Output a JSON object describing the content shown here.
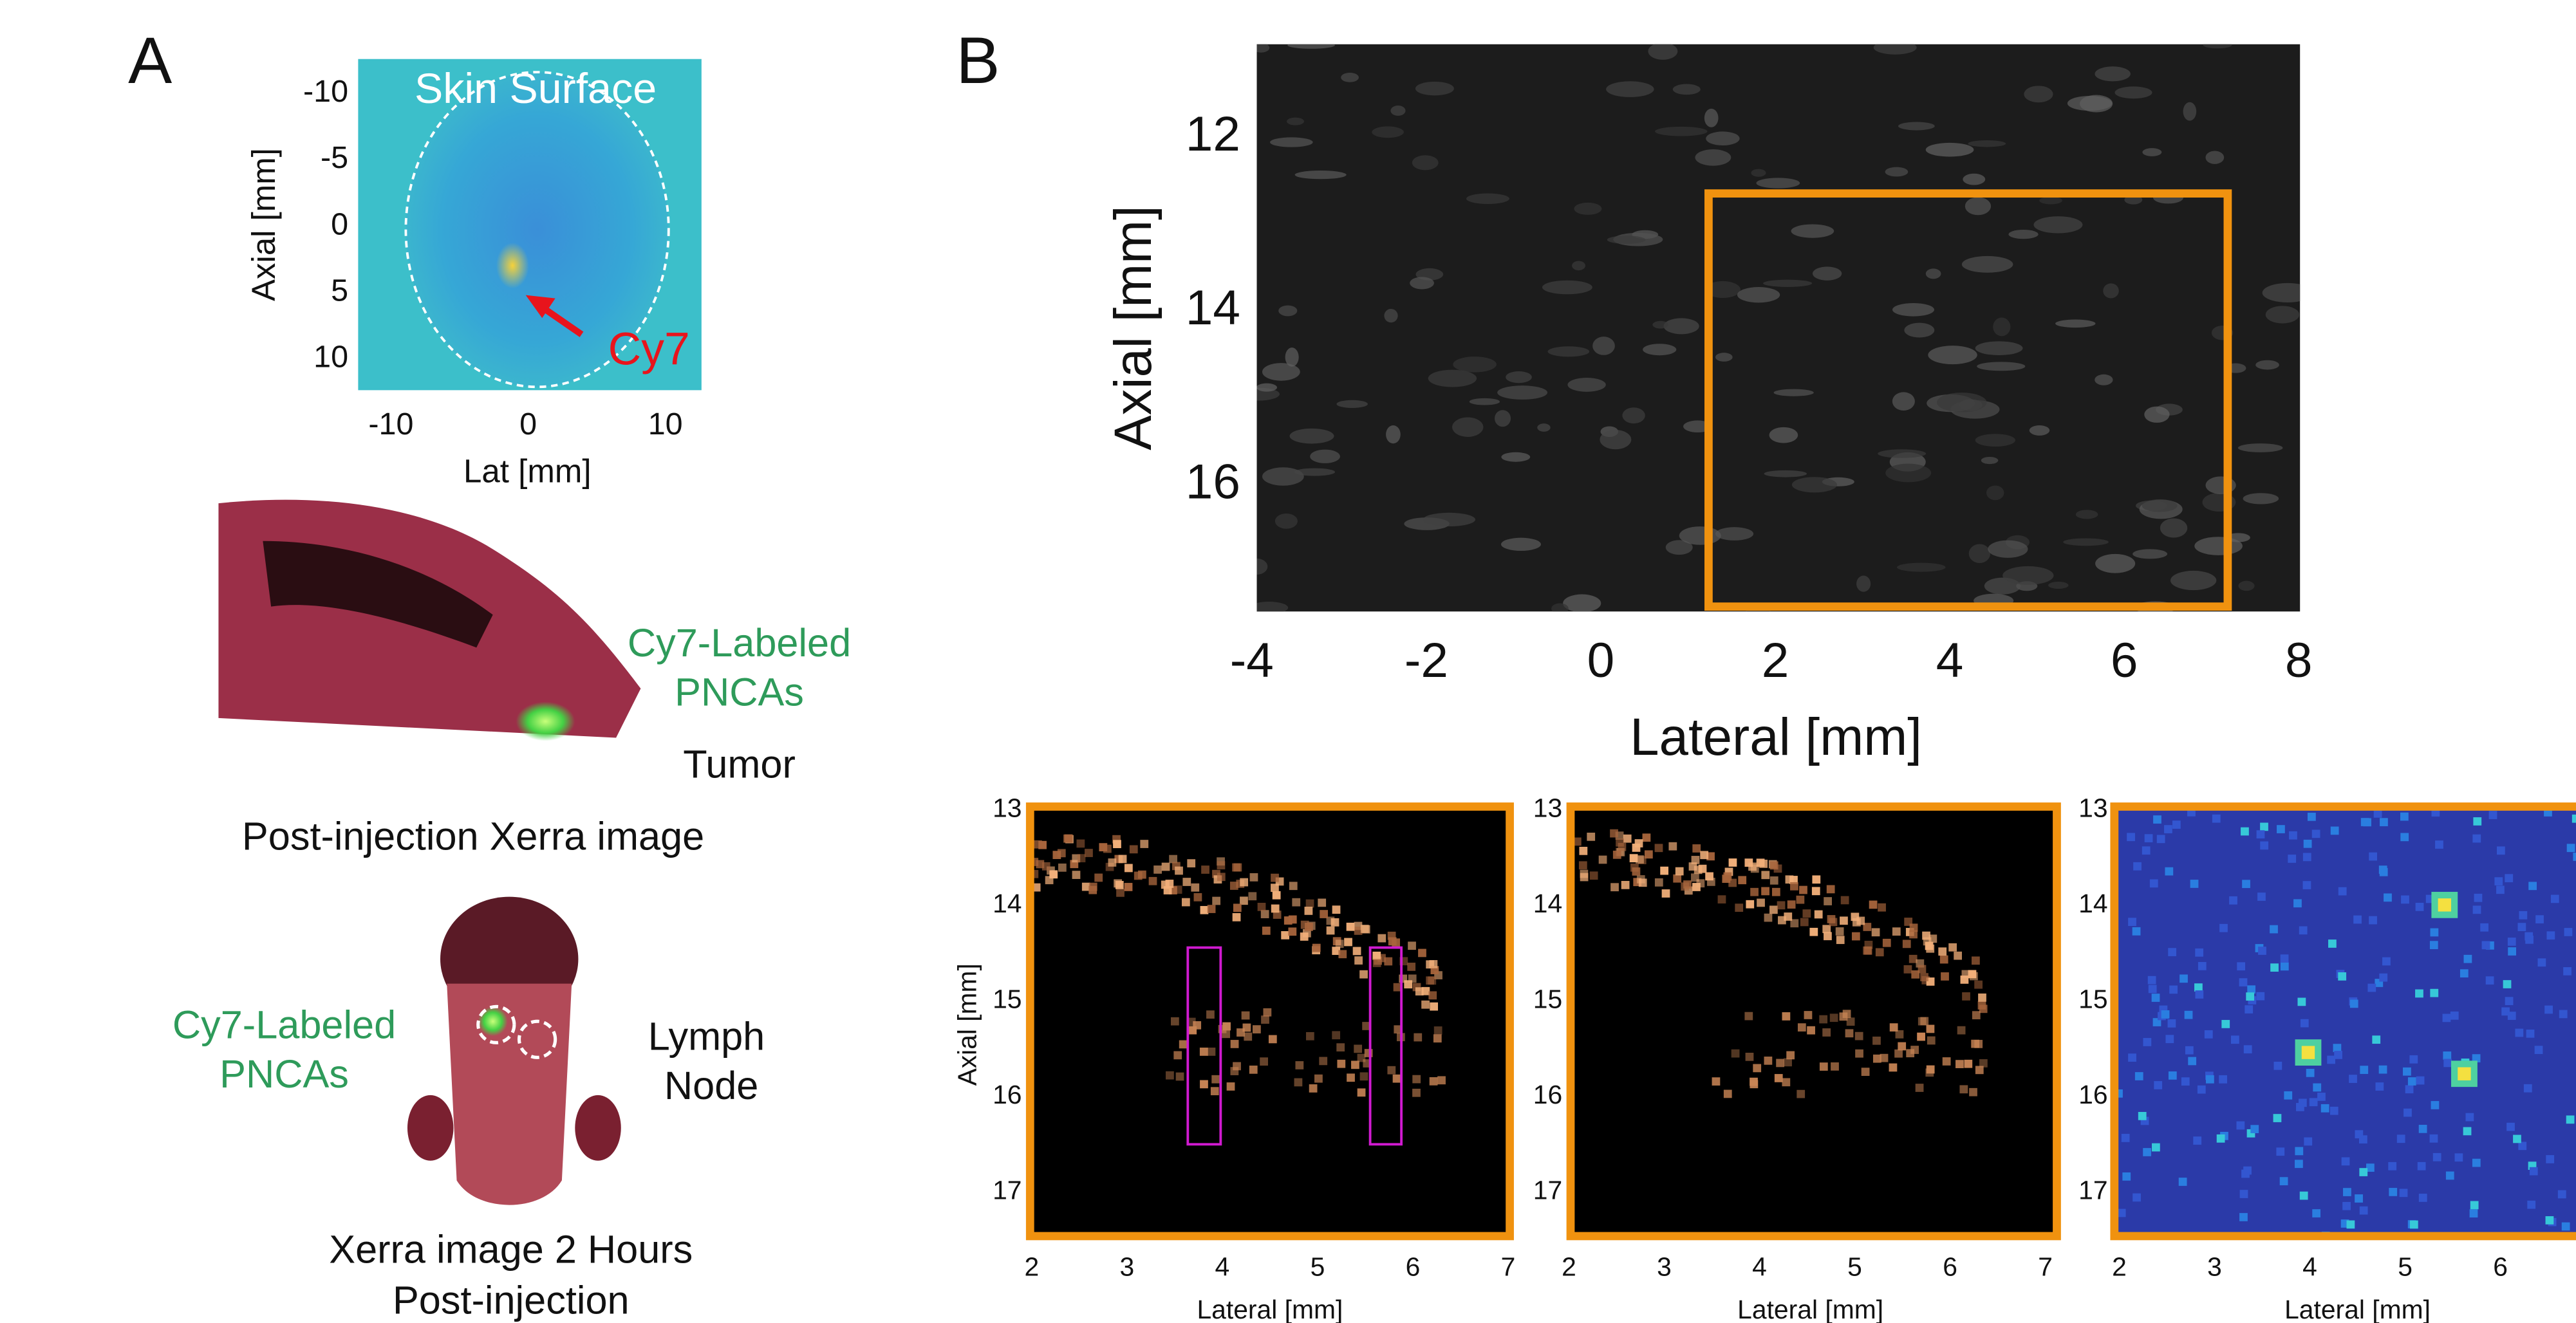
{
  "panel_a": {
    "label": "A",
    "skin_map": {
      "title": "Skin Surface",
      "annotation": "Cy7",
      "y_label": "Axial [mm]",
      "x_label": "Lat [mm]",
      "yticks": [
        "-10",
        "-5",
        "0",
        "5",
        "10"
      ],
      "xticks": [
        "-10",
        "0",
        "10"
      ]
    },
    "xerra_side": {
      "probe_label": [
        "Cy7-Labeled",
        "PNCAs"
      ],
      "tumor_label": "Tumor",
      "caption": "Post-injection Xerra image"
    },
    "xerra_top": {
      "probe_label": [
        "Cy7-Labeled",
        "PNCAs"
      ],
      "node_label": [
        "Lymph",
        "Node"
      ],
      "caption": [
        "Xerra image 2 Hours",
        "Post-injection"
      ]
    }
  },
  "panel_b": {
    "label": "B",
    "ultrasound": {
      "y_label": "Axial [mm]",
      "x_label": "Lateral [mm]",
      "yticks": [
        "12",
        "14",
        "16"
      ],
      "xticks": [
        "-4",
        "-2",
        "0",
        "2",
        "4",
        "6",
        "8"
      ]
    },
    "insets": [
      {
        "y_label": "Axial [mm]",
        "x_label": "Lateral [mm]",
        "yticks": [
          "13",
          "14",
          "15",
          "16",
          "17"
        ],
        "xticks": [
          "2",
          "3",
          "4",
          "5",
          "6",
          "7"
        ]
      },
      {
        "x_label": "Lateral [mm]",
        "yticks": [
          "13",
          "14",
          "15",
          "16",
          "17"
        ],
        "xticks": [
          "2",
          "3",
          "4",
          "5",
          "6",
          "7"
        ]
      },
      {
        "x_label": "Lateral [mm]",
        "yticks": [
          "13",
          "14",
          "15",
          "16",
          "17"
        ],
        "xticks": [
          "2",
          "3",
          "4",
          "5",
          "6"
        ]
      }
    ]
  }
}
